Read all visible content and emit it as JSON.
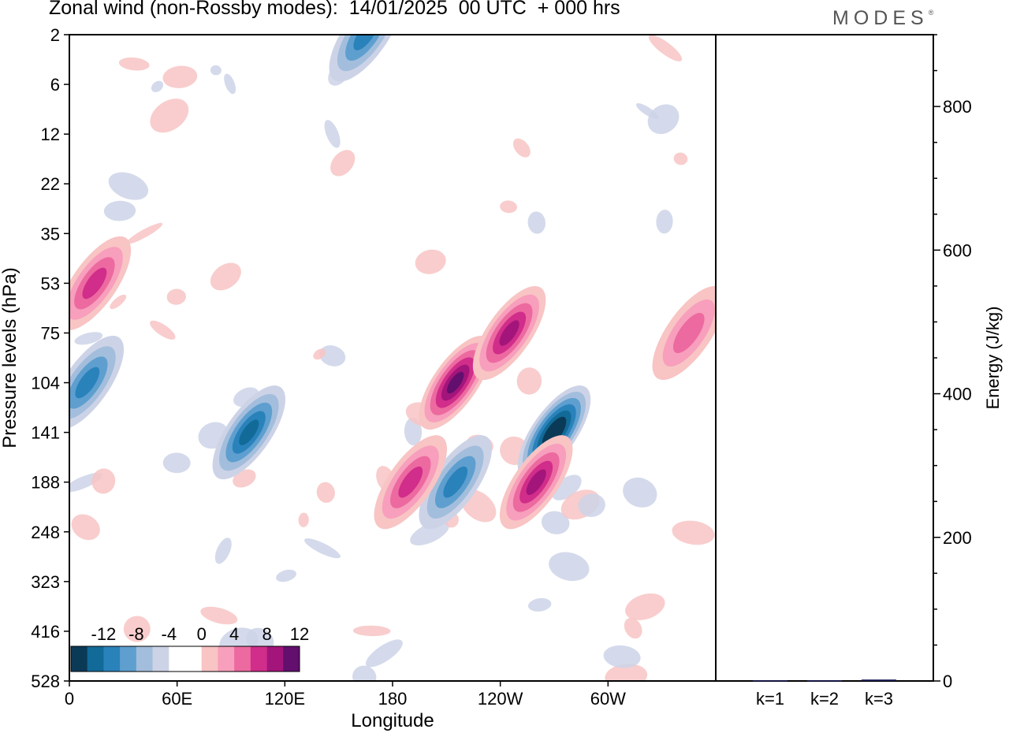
{
  "header": {
    "title": "Zonal wind (non-Rossby modes):  14/01/2025  00 UTC  + 000 hrs",
    "logo_text": "MODES"
  },
  "chart_data": [
    {
      "type": "heatmap",
      "name": "zonal-wind-contour",
      "xlabel": "Longitude",
      "ylabel": "Pressure levels (hPa)",
      "x_ticks": [
        "0",
        "60E",
        "120E",
        "180",
        "120W",
        "60W"
      ],
      "x_tick_degrees": [
        0,
        60,
        120,
        180,
        240,
        300
      ],
      "x_range_degrees": [
        0,
        360
      ],
      "y_ticks": [
        "2",
        "6",
        "12",
        "22",
        "35",
        "53",
        "75",
        "104",
        "141",
        "188",
        "248",
        "323",
        "416",
        "528"
      ],
      "colorbar": {
        "labels": [
          "-12",
          "-8",
          "-4",
          "0",
          "4",
          "8",
          "12"
        ],
        "colors": [
          "#0b3a57",
          "#126a98",
          "#2a82bb",
          "#5e9fcf",
          "#a3bedc",
          "#cdd3e7",
          "#ffffff",
          "#ffffff",
          "#f8c4c4",
          "#f79fbc",
          "#ec6aa0",
          "#d12d8a",
          "#a3157a",
          "#620f6e"
        ]
      },
      "features": [
        {
          "sign": "negative",
          "peak": -14,
          "lon": 270,
          "level": "141"
        },
        {
          "sign": "negative",
          "peak": -10,
          "lon": 100,
          "level": "141"
        },
        {
          "sign": "negative",
          "peak": -9,
          "lon": 10,
          "level": "104"
        },
        {
          "sign": "negative",
          "peak": -8,
          "lon": 215,
          "level": "188"
        },
        {
          "sign": "negative",
          "peak": -8,
          "lon": 165,
          "level": "2"
        },
        {
          "sign": "positive",
          "peak": 12,
          "lon": 215,
          "level": "104"
        },
        {
          "sign": "positive",
          "peak": 10,
          "lon": 260,
          "level": "188"
        },
        {
          "sign": "positive",
          "peak": 10,
          "lon": 245,
          "level": "75"
        },
        {
          "sign": "positive",
          "peak": 8,
          "lon": 190,
          "level": "188"
        },
        {
          "sign": "positive",
          "peak": 8,
          "lon": 14,
          "level": "53"
        },
        {
          "sign": "positive",
          "peak": 7,
          "lon": 345,
          "level": "75"
        }
      ]
    },
    {
      "type": "bar",
      "name": "energy-bars",
      "categories": [
        "k=1",
        "k=2",
        "k=3"
      ],
      "values": [
        1,
        1,
        2
      ],
      "ylabel": "Energy (J/kg)",
      "y_ticks": [
        "0",
        "200",
        "400",
        "600",
        "800"
      ],
      "ylim": [
        0,
        900
      ],
      "bar_color": "#1a1a55"
    }
  ]
}
